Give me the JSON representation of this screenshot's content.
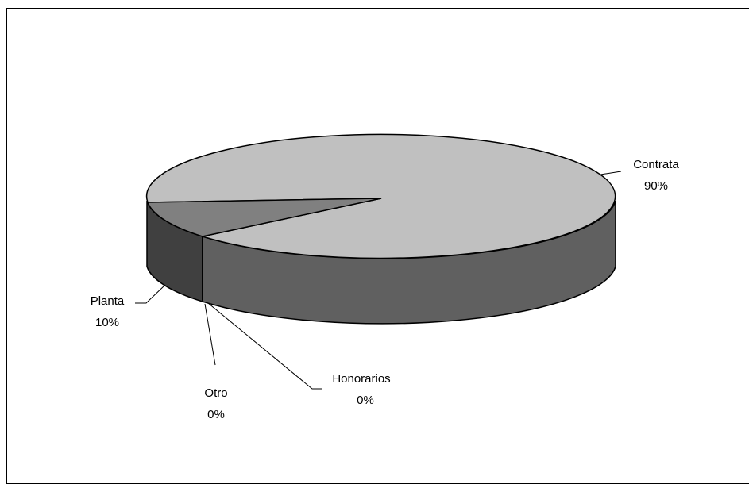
{
  "chart_data": {
    "type": "pie",
    "style": "3d",
    "labels": [
      {
        "category": "Contrata",
        "percent_text": "90%"
      },
      {
        "category": "Planta",
        "percent_text": "10%"
      },
      {
        "category": "Honorarios",
        "percent_text": "0%"
      },
      {
        "category": "Otro",
        "percent_text": "0%"
      }
    ],
    "slices": [
      {
        "name": "Contrata",
        "value": 90,
        "top_color": "#c0c0c0",
        "side_color": "#606060"
      },
      {
        "name": "Planta",
        "value": 10,
        "top_color": "#808080",
        "side_color": "#404040"
      },
      {
        "name": "Honorarios",
        "value": 0,
        "top_color": "#ffffff",
        "side_color": "#404040"
      },
      {
        "name": "Otro",
        "value": 0,
        "top_color": "#ffffff",
        "side_color": "#404040"
      }
    ],
    "legend": "none"
  }
}
